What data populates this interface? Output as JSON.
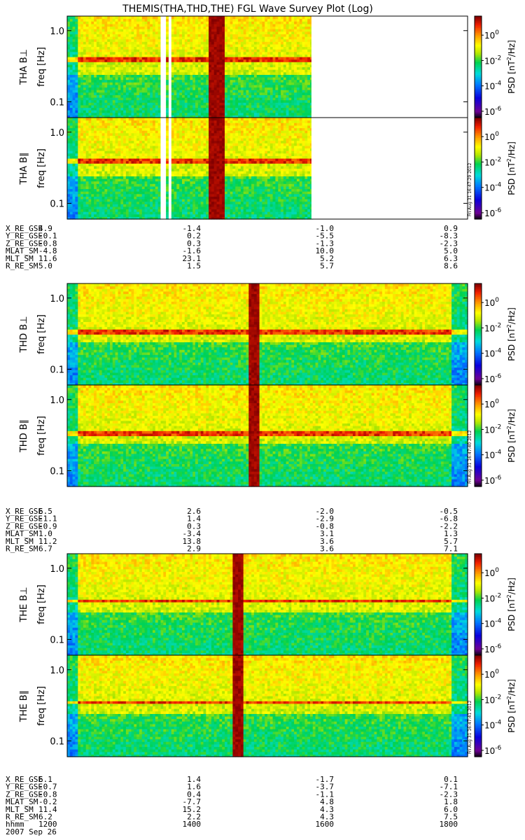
{
  "chart_data": {
    "type": "heatmap",
    "title": "THEMIS(THA,THD,THE) FGL Wave Survey Plot (Log)",
    "xaxis": {
      "label_row": "hhmm",
      "date": "2007 Sep 26",
      "ticks": [
        "1200",
        "1400",
        "1600",
        "1800"
      ],
      "range": [
        1200,
        1800
      ]
    },
    "colorbar": {
      "label_psd": "PSD",
      "label_units": "[nT",
      "label_units_tail": "/Hz]",
      "tick_base": "10",
      "tick_exps": [
        "0",
        "-2",
        "-4",
        "-6"
      ],
      "scale": "log",
      "range": [
        -6.5,
        1.5
      ]
    },
    "yaxis": {
      "unit_label": "freq",
      "unit_bracket": "[Hz]",
      "ticks": [
        "1.0",
        "0.1"
      ],
      "scale": "log",
      "range": [
        0.06,
        1.6
      ]
    },
    "groups": [
      {
        "probe": "THA",
        "panels": [
          {
            "label": "THA B⊥",
            "stamp": "",
            "bright_band": "0.4 Hz"
          },
          {
            "label": "THA B∥",
            "stamp": "Fri Aug 31 16:47:29 2012",
            "bright_band": "0.4 Hz"
          }
        ],
        "gaps": [
          [
            1340,
            1346
          ],
          [
            1352,
            1356
          ],
          [
            1566,
            1578
          ],
          [
            1580,
            1800
          ]
        ],
        "dense_interval": [
          1409,
          1434
        ],
        "ephemeris": [
          {
            "name": "X_RE_GSE",
            "values": [
              "4.9",
              "-1.4",
              "-1.0",
              "0.9"
            ]
          },
          {
            "name": "Y_RE_GSE",
            "values": [
              "-0.1",
              "0.2",
              "-5.5",
              "-8.3"
            ]
          },
          {
            "name": "Z_RE_GSE",
            "values": [
              "-0.8",
              "0.3",
              "-1.3",
              "-2.3"
            ]
          },
          {
            "name": "MLAT_SM",
            "values": [
              "-4.8",
              "-1.6",
              "10.0",
              "5.0"
            ]
          },
          {
            "name": "MLT_SM",
            "values": [
              "11.6",
              "23.1",
              "5.2",
              "6.3"
            ]
          },
          {
            "name": "R_RE_SM",
            "values": [
              "5.0",
              "1.5",
              "5.7",
              "8.6"
            ]
          }
        ]
      },
      {
        "probe": "THD",
        "panels": [
          {
            "label": "THD B⊥",
            "stamp": "",
            "bright_band": "0.33 Hz"
          },
          {
            "label": "THD B∥",
            "stamp": "Fri Aug 31 16:47:40 2012",
            "bright_band": "0.33 Hz"
          }
        ],
        "gaps": [],
        "dense_interval": [
          1471,
          1484
        ],
        "ephemeris": [
          {
            "name": "X_RE_GSE",
            "values": [
              "6.5",
              "2.6",
              "-2.0",
              "-0.5"
            ]
          },
          {
            "name": "Y_RE_GSE",
            "values": [
              "-1.1",
              "1.4",
              "-2.9",
              "-6.8"
            ]
          },
          {
            "name": "Z_RE_GSE",
            "values": [
              "-0.9",
              "0.3",
              "-0.8",
              "-2.2"
            ]
          },
          {
            "name": "MLAT_SM",
            "values": [
              "1.0",
              "-3.4",
              "3.1",
              "1.3"
            ]
          },
          {
            "name": "MLT_SM",
            "values": [
              "11.2",
              "13.8",
              "3.6",
              "5.7"
            ]
          },
          {
            "name": "R_RE_SM",
            "values": [
              "6.7",
              "2.9",
              "3.6",
              "7.1"
            ]
          }
        ]
      },
      {
        "probe": "THE",
        "panels": [
          {
            "label": "THE B⊥",
            "stamp": "",
            "bright_band": "0.35 Hz"
          },
          {
            "label": "THE B∥",
            "stamp": "Fri Aug 31 16:47:41 2012",
            "bright_band": "0.35 Hz"
          }
        ],
        "gaps": [],
        "dense_interval": [
          1447,
          1461
        ],
        "ephemeris": [
          {
            "name": "X_RE_GSE",
            "values": [
              "6.1",
              "1.4",
              "-1.7",
              "0.1"
            ]
          },
          {
            "name": "Y_RE_GSE",
            "values": [
              "-0.7",
              "1.6",
              "-3.7",
              "-7.1"
            ]
          },
          {
            "name": "Z_RE_GSE",
            "values": [
              "-0.8",
              "0.4",
              "-1.1",
              "-2.3"
            ]
          },
          {
            "name": "MLAT_SM",
            "values": [
              "-0.2",
              "-7.7",
              "4.8",
              "1.8"
            ]
          },
          {
            "name": "MLT_SM",
            "values": [
              "11.4",
              "15.2",
              "4.3",
              "6.0"
            ]
          },
          {
            "name": "R_RE_SM",
            "values": [
              "6.2",
              "2.2",
              "4.3",
              "7.5"
            ]
          }
        ]
      }
    ]
  }
}
